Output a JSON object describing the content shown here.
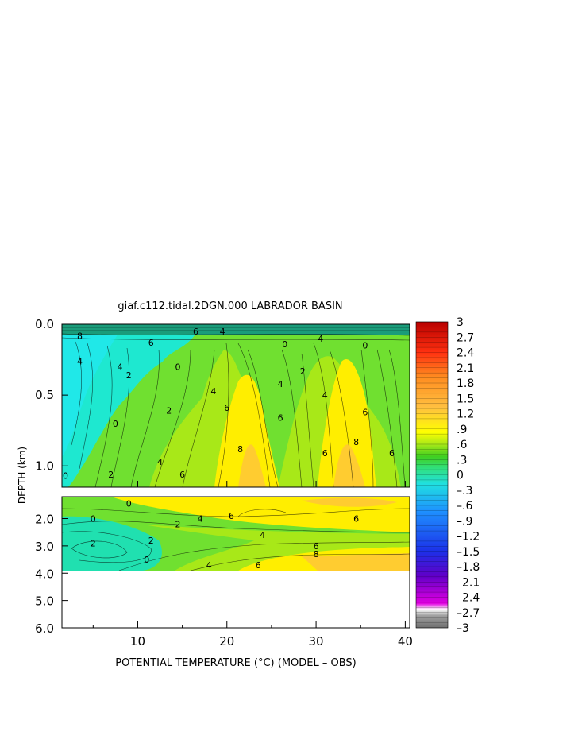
{
  "chart_data": {
    "type": "heatmap",
    "title": "giaf.c112.tidal.2DGN.000 LABRADOR BASIN",
    "xlabel": "POTENTIAL TEMPERATURE (°C) (MODEL – OBS)",
    "ylabel": "DEPTH (km)",
    "xlim": [
      1.5,
      40.5
    ],
    "x_ticks": [
      "10",
      "20",
      "30",
      "40"
    ],
    "x_tick_values": [
      10,
      20,
      30,
      40
    ],
    "top_panel": {
      "ylim": [
        0.0,
        1.15
      ],
      "y_ticks": [
        "0.0",
        "0.5",
        "1.0"
      ],
      "y_tick_values": [
        0.0,
        0.5,
        1.0
      ]
    },
    "bottom_panel": {
      "ylim": [
        1.2,
        6.0
      ],
      "y_ticks": [
        "2.0",
        "3.0",
        "4.0",
        "5.0",
        "6.0"
      ],
      "y_tick_values": [
        2.0,
        3.0,
        4.0,
        5.0,
        6.0
      ],
      "data_bottom": 3.8
    },
    "colorbar": {
      "min": -3,
      "max": 3,
      "labels": [
        "3",
        "2.7",
        "2.4",
        "2.1",
        "1.8",
        "1.5",
        "1.2",
        ".9",
        ".6",
        ".3",
        "0",
        "–.3",
        "–.6",
        "–.9",
        "–1.2",
        "–1.5",
        "–1.8",
        "–2.1",
        "–2.4",
        "–2.7",
        "–3"
      ],
      "label_values": [
        3,
        2.7,
        2.4,
        2.1,
        1.8,
        1.5,
        1.2,
        0.9,
        0.6,
        0.3,
        0,
        -0.3,
        -0.6,
        -0.9,
        -1.2,
        -1.5,
        -1.8,
        -2.1,
        -2.4,
        -2.7,
        -3
      ]
    },
    "contour_labels_top": [
      {
        "text": "8",
        "x": 3.5,
        "y": 0.08
      },
      {
        "text": "6",
        "x": 11.5,
        "y": 0.13
      },
      {
        "text": "6",
        "x": 16.5,
        "y": 0.05
      },
      {
        "text": "4",
        "x": 19.5,
        "y": 0.05
      },
      {
        "text": "4",
        "x": 8.0,
        "y": 0.3
      },
      {
        "text": "2",
        "x": 9.0,
        "y": 0.36
      },
      {
        "text": "4",
        "x": 3.5,
        "y": 0.26
      },
      {
        "text": "0",
        "x": 7.5,
        "y": 0.7
      },
      {
        "text": "0",
        "x": 14.5,
        "y": 0.3
      },
      {
        "text": "2",
        "x": 13.5,
        "y": 0.61
      },
      {
        "text": "4",
        "x": 12.5,
        "y": 0.97
      },
      {
        "text": "6",
        "x": 15.0,
        "y": 1.06
      },
      {
        "text": "4",
        "x": 18.5,
        "y": 0.47
      },
      {
        "text": "6",
        "x": 20.0,
        "y": 0.59
      },
      {
        "text": "8",
        "x": 21.5,
        "y": 0.88
      },
      {
        "text": "0",
        "x": 26.5,
        "y": 0.14
      },
      {
        "text": "2",
        "x": 28.5,
        "y": 0.33
      },
      {
        "text": "4",
        "x": 26.0,
        "y": 0.42
      },
      {
        "text": "6",
        "x": 26.0,
        "y": 0.66
      },
      {
        "text": "4",
        "x": 31.0,
        "y": 0.5
      },
      {
        "text": "6",
        "x": 31.0,
        "y": 0.91
      },
      {
        "text": "8",
        "x": 34.5,
        "y": 0.83
      },
      {
        "text": "0",
        "x": 35.5,
        "y": 0.15
      },
      {
        "text": "6",
        "x": 35.5,
        "y": 0.62
      },
      {
        "text": "6",
        "x": 38.5,
        "y": 0.91
      },
      {
        "text": "0",
        "x": 1.9,
        "y": 1.07
      },
      {
        "text": "2",
        "x": 7.0,
        "y": 1.06
      },
      {
        "text": "4",
        "x": 30.5,
        "y": 0.1
      }
    ],
    "contour_labels_bottom": [
      {
        "text": "0",
        "x": 9.0,
        "y": 1.45
      },
      {
        "text": "0",
        "x": 5.0,
        "y": 2.0
      },
      {
        "text": "2",
        "x": 14.5,
        "y": 2.2
      },
      {
        "text": "4",
        "x": 17.0,
        "y": 2.0
      },
      {
        "text": "6",
        "x": 20.5,
        "y": 1.9
      },
      {
        "text": "6",
        "x": 34.5,
        "y": 2.0
      },
      {
        "text": "2",
        "x": 5.0,
        "y": 2.9
      },
      {
        "text": "2",
        "x": 11.5,
        "y": 2.8
      },
      {
        "text": "0",
        "x": 11.0,
        "y": 3.5
      },
      {
        "text": "4",
        "x": 24.0,
        "y": 2.6
      },
      {
        "text": "4",
        "x": 18.0,
        "y": 3.7
      },
      {
        "text": "6",
        "x": 23.5,
        "y": 3.7
      },
      {
        "text": "6",
        "x": 30.0,
        "y": 3.0
      },
      {
        "text": "8",
        "x": 30.0,
        "y": 3.3
      }
    ]
  }
}
